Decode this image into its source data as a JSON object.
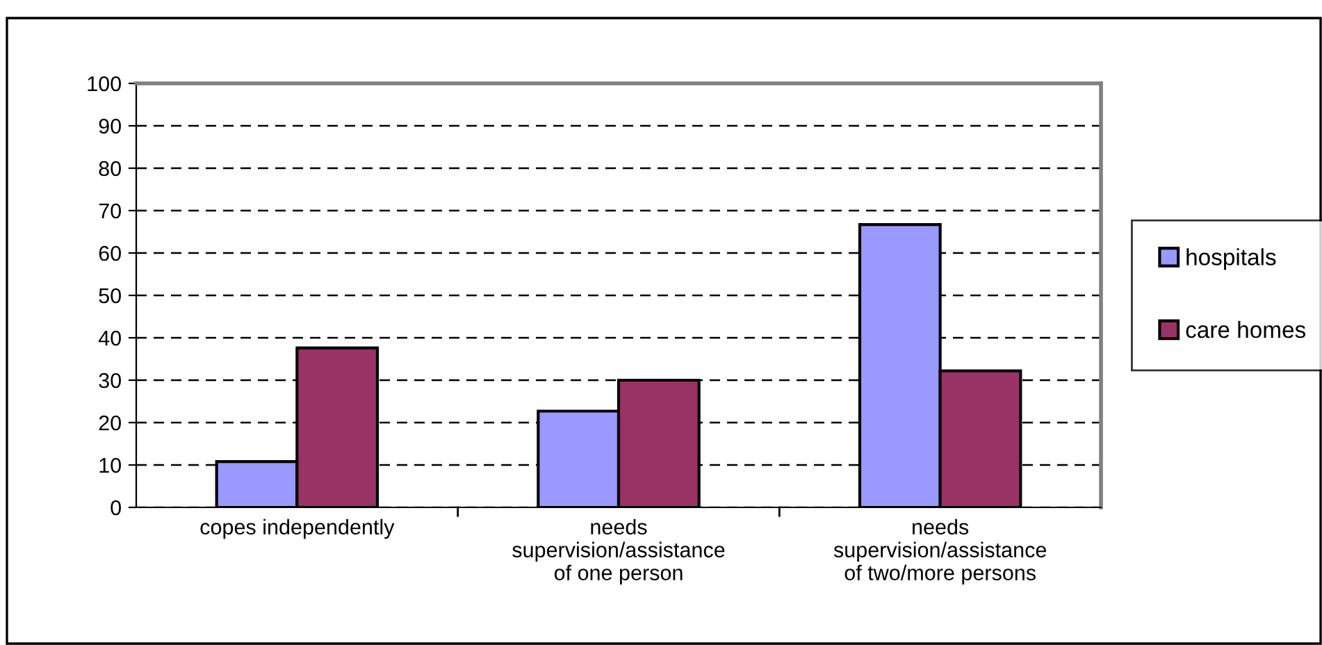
{
  "chart_data": {
    "type": "bar",
    "categories": [
      "copes independently",
      "needs\nsupervision/assistance\nof one person",
      "needs\nsupervision/assistance\nof two/more persons"
    ],
    "series": [
      {
        "name": "hospitals",
        "color": "#9999ff",
        "values": [
          10.8,
          22.7,
          66.7
        ]
      },
      {
        "name": "care homes",
        "color": "#993366",
        "values": [
          37.6,
          30,
          32.2
        ]
      }
    ],
    "ylim": [
      0,
      100
    ],
    "yticks": [
      0,
      10,
      20,
      30,
      40,
      50,
      60,
      70,
      80,
      90,
      100
    ],
    "grid": "y",
    "legend": "right"
  }
}
